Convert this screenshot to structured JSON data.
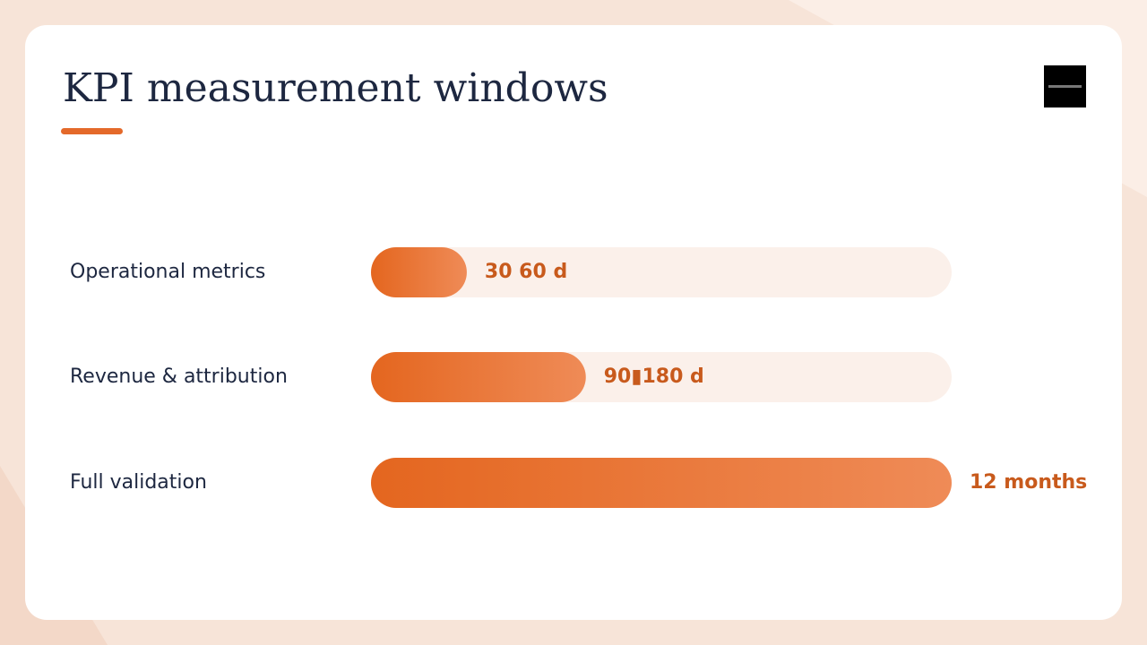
{
  "chart_data": {
    "type": "bar",
    "orientation": "horizontal",
    "title": "KPI measurement windows",
    "categories": [
      "Operational metrics",
      "Revenue & attribution",
      "Full validation"
    ],
    "values": [
      16.5,
      37,
      100
    ],
    "labels": [
      "30 60 d",
      "90▮180 d",
      "12 months"
    ],
    "xlim": [
      0,
      100
    ],
    "color": "#e4661f",
    "grid": false
  }
}
